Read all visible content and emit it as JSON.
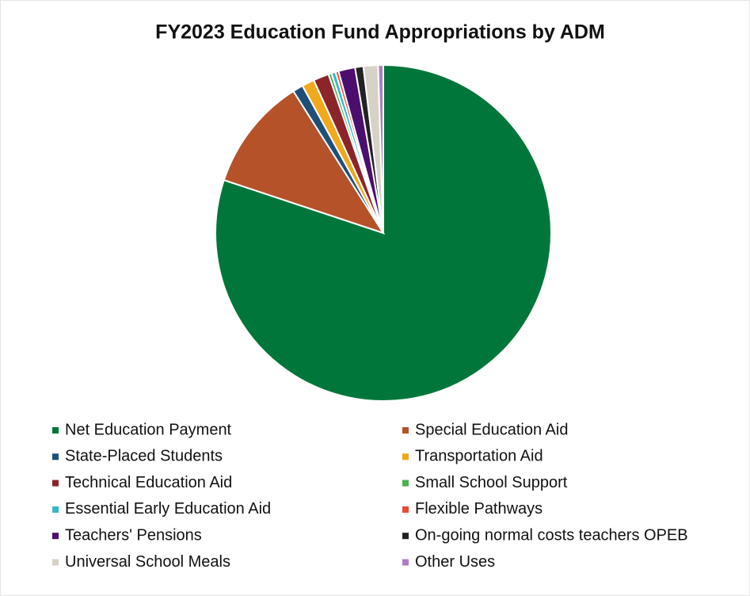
{
  "chart_data": {
    "type": "pie",
    "title": "FY2023 Education Fund Appropriations by ADM",
    "categories": [
      "Net Education Payment",
      "Special Education Aid",
      "State-Placed Students",
      "Transportation Aid",
      "Technical Education Aid",
      "Small School Support",
      "Essential Early Education Aid",
      "Flexible Pathways",
      "Teachers' Pensions",
      "On-going normal costs teachers OPEB",
      "Universal School Meals",
      "Other Uses"
    ],
    "values": [
      80.1,
      10.9,
      1.0,
      1.2,
      1.5,
      0.3,
      0.4,
      0.3,
      1.6,
      0.8,
      1.4,
      0.5
    ],
    "colors": [
      "#00763a",
      "#b5522a",
      "#1f4e79",
      "#f0a91c",
      "#8b2529",
      "#4caf50",
      "#3bb5c9",
      "#e84a3c",
      "#4b0e6e",
      "#222222",
      "#d6d2c8",
      "#b07cc6"
    ]
  }
}
